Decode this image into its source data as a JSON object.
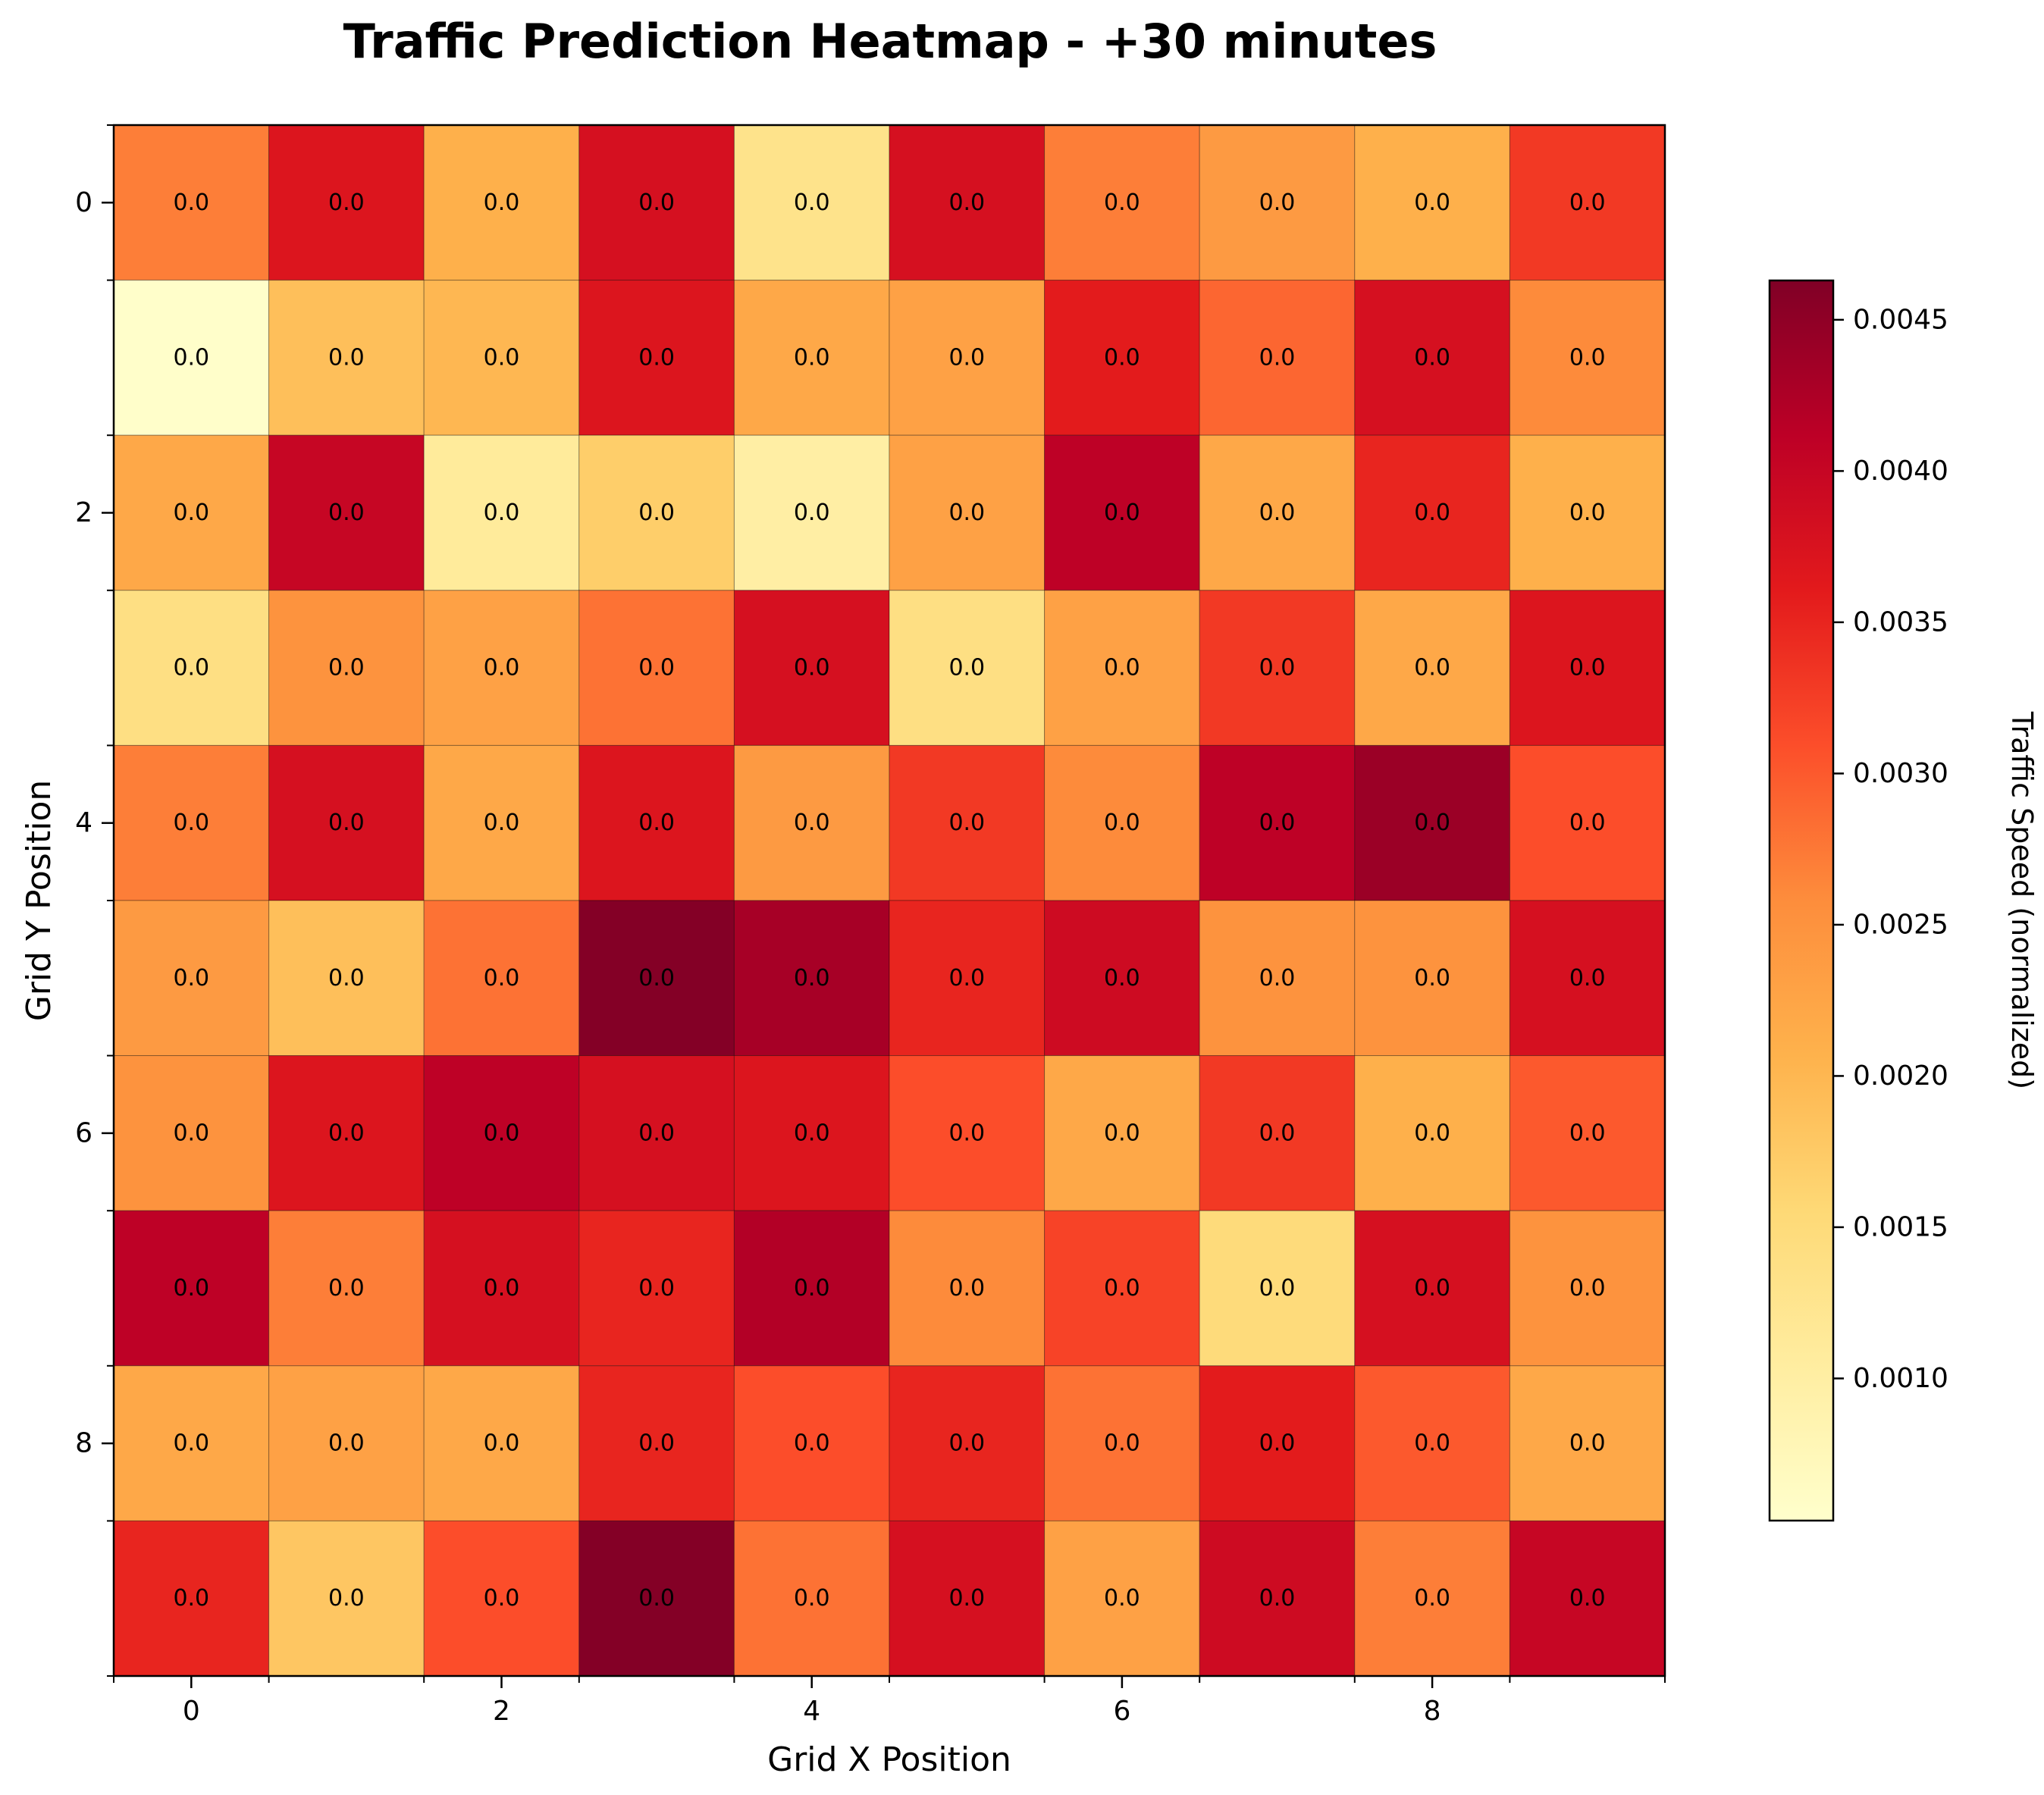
{
  "chart_data": {
    "type": "heatmap",
    "title": "Traffic Prediction Heatmap - +30 minutes",
    "xlabel": "Grid X Position",
    "ylabel": "Grid Y Position",
    "x_ticks": [
      0,
      2,
      4,
      6,
      8
    ],
    "y_ticks": [
      0,
      2,
      4,
      6,
      8
    ],
    "xlim": [
      -0.5,
      9.5
    ],
    "ylim": [
      9.5,
      -0.5
    ],
    "grid": false,
    "colormap": "YlOrRd",
    "cell_label": "0.0",
    "colorbar": {
      "label": "Traffic Speed (normalized)",
      "min": 0.00053,
      "max": 0.00463,
      "ticks": [
        0.001,
        0.0015,
        0.002,
        0.0025,
        0.003,
        0.0035,
        0.004,
        0.0045
      ],
      "tick_labels": [
        "0.0010",
        "0.0015",
        "0.0020",
        "0.0025",
        "0.0030",
        "0.0035",
        "0.0040",
        "0.0045"
      ]
    },
    "values": [
      [
        0.0027,
        0.0037,
        0.0021,
        0.0038,
        0.0013,
        0.0038,
        0.0027,
        0.0024,
        0.0021,
        0.0033
      ],
      [
        0.00055,
        0.0019,
        0.002,
        0.0037,
        0.0022,
        0.0023,
        0.0036,
        0.0029,
        0.0038,
        0.0026
      ],
      [
        0.0022,
        0.004,
        0.0011,
        0.0017,
        0.001,
        0.0023,
        0.0041,
        0.0022,
        0.0035,
        0.0021
      ],
      [
        0.0014,
        0.0025,
        0.0023,
        0.0028,
        0.0038,
        0.0014,
        0.0023,
        0.0033,
        0.0022,
        0.0037
      ],
      [
        0.0027,
        0.0038,
        0.0022,
        0.0037,
        0.0024,
        0.0033,
        0.0026,
        0.0041,
        0.0044,
        0.0031
      ],
      [
        0.0024,
        0.0019,
        0.0028,
        0.0046,
        0.0043,
        0.0035,
        0.0039,
        0.0025,
        0.0025,
        0.0038
      ],
      [
        0.0025,
        0.0037,
        0.0041,
        0.0038,
        0.0037,
        0.0031,
        0.0022,
        0.0033,
        0.0021,
        0.003
      ],
      [
        0.0041,
        0.0027,
        0.0038,
        0.0035,
        0.0042,
        0.0026,
        0.0032,
        0.0015,
        0.0038,
        0.0025
      ],
      [
        0.0022,
        0.0023,
        0.0022,
        0.0035,
        0.0031,
        0.0035,
        0.0028,
        0.0036,
        0.003,
        0.0022
      ],
      [
        0.0035,
        0.0018,
        0.0031,
        0.0046,
        0.0028,
        0.0038,
        0.0023,
        0.0039,
        0.0027,
        0.004
      ]
    ]
  }
}
